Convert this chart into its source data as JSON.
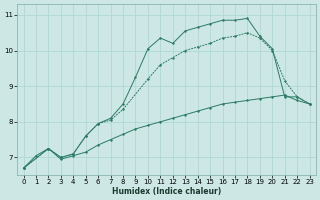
{
  "xlabel": "Humidex (Indice chaleur)",
  "bg_color": "#cde8e4",
  "grid_color": "#aed8d2",
  "line_color": "#2a7a65",
  "xlim": [
    -0.5,
    23.5
  ],
  "ylim": [
    6.5,
    11.3
  ],
  "xticks": [
    0,
    1,
    2,
    3,
    4,
    5,
    6,
    7,
    8,
    9,
    10,
    11,
    12,
    13,
    14,
    15,
    16,
    17,
    18,
    19,
    20,
    21,
    22,
    23
  ],
  "yticks": [
    7,
    8,
    9,
    10,
    11
  ],
  "line_bottom": {
    "x": [
      0,
      1,
      2,
      3,
      4,
      5,
      6,
      7,
      8,
      9,
      10,
      11,
      12,
      13,
      14,
      15,
      16,
      17,
      18,
      19,
      20,
      21,
      22,
      23
    ],
    "y": [
      6.7,
      7.05,
      7.25,
      6.95,
      7.05,
      7.15,
      7.35,
      7.5,
      7.65,
      7.8,
      7.9,
      8.0,
      8.1,
      8.2,
      8.3,
      8.4,
      8.5,
      8.55,
      8.6,
      8.65,
      8.7,
      8.75,
      8.6,
      8.5
    ],
    "style": "solid",
    "marker": true
  },
  "line_mid": {
    "x": [
      0,
      2,
      3,
      4,
      5,
      6,
      7,
      8,
      10,
      11,
      12,
      13,
      14,
      15,
      16,
      17,
      18,
      19,
      20,
      21,
      22,
      23
    ],
    "y": [
      6.7,
      7.25,
      7.0,
      7.1,
      7.6,
      7.95,
      8.05,
      8.35,
      9.2,
      9.6,
      9.8,
      10.0,
      10.1,
      10.2,
      10.35,
      10.4,
      10.5,
      10.35,
      10.0,
      9.15,
      8.7,
      8.5
    ],
    "style": "dotted",
    "marker": true
  },
  "line_top": {
    "x": [
      0,
      2,
      3,
      4,
      5,
      6,
      7,
      8,
      9,
      10,
      11,
      12,
      13,
      14,
      15,
      16,
      17,
      18,
      19,
      20,
      21,
      22,
      23
    ],
    "y": [
      6.7,
      7.25,
      7.0,
      7.1,
      7.6,
      7.95,
      8.1,
      8.5,
      9.25,
      10.05,
      10.35,
      10.2,
      10.55,
      10.65,
      10.75,
      10.85,
      10.85,
      10.9,
      10.4,
      10.05,
      8.7,
      8.7,
      8.5
    ],
    "style": "solid",
    "marker": true
  }
}
